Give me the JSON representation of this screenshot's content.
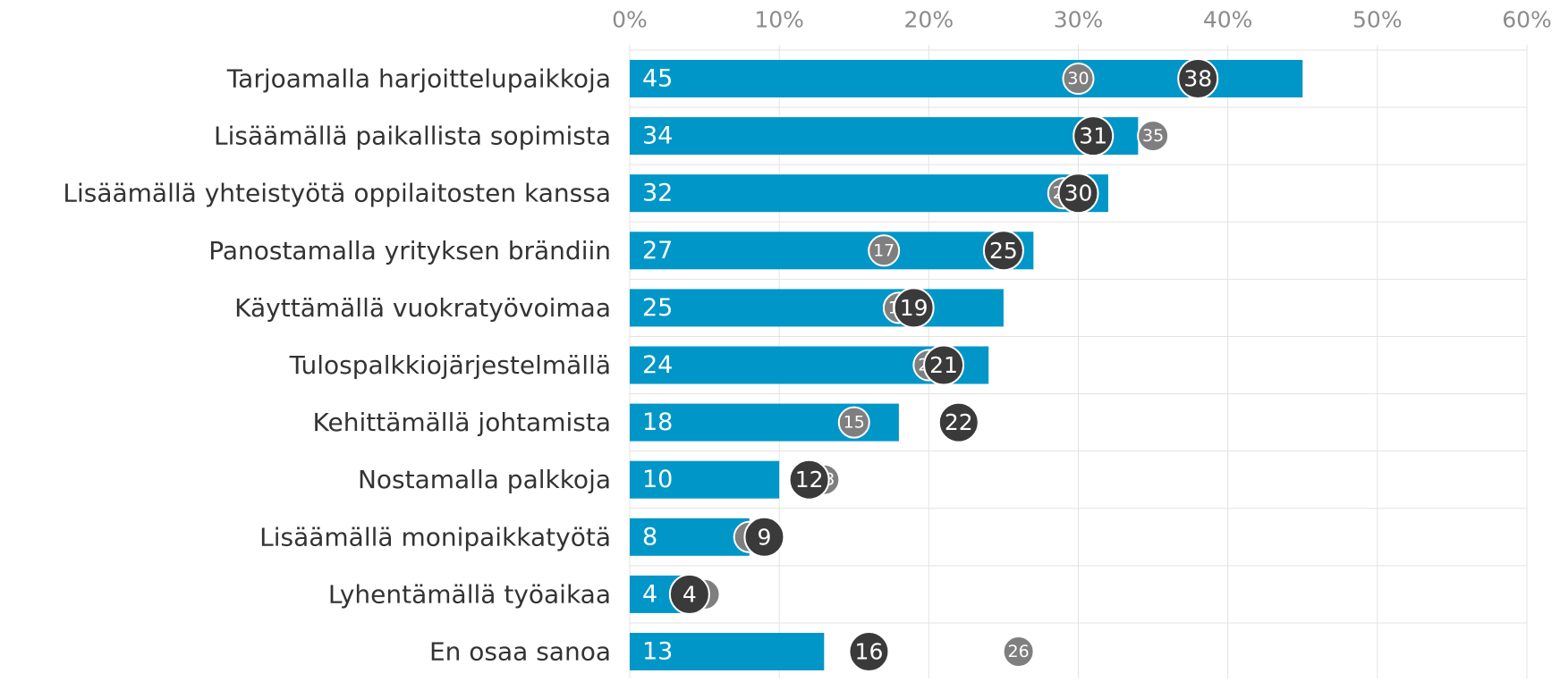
{
  "chart_data": {
    "type": "bar",
    "orientation": "horizontal",
    "categories": [
      "Tarjoamalla harjoittelupaikkoja",
      "Lisäämällä paikallista sopimista",
      "Lisäämällä yhteistyötä oppilaitosten kanssa",
      "Panostamalla yrityksen brändiin",
      "Käyttämällä vuokratyövoimaa",
      "Tulospalkkiojärjestelmällä",
      "Kehittämällä johtamista",
      "Nostamalla palkkoja",
      "Lisäämällä monipaikkatyötä",
      "Lyhentämällä työaikaa",
      "En osaa sanoa"
    ],
    "values": [
      45,
      34,
      32,
      27,
      25,
      24,
      18,
      10,
      8,
      4,
      13
    ],
    "color": "#0096c8",
    "series": [
      {
        "type": "scatter",
        "color": "#7f7f7f",
        "values": [
          30,
          35,
          29,
          17,
          18,
          20,
          15,
          13,
          8,
          5,
          26
        ]
      },
      {
        "type": "scatter",
        "color": "#3a3a3a",
        "values": [
          38,
          31,
          30,
          25,
          19,
          21,
          22,
          12,
          9,
          4,
          16
        ]
      }
    ],
    "xlim": [
      0,
      60
    ],
    "xticks": [
      {
        "value": 0,
        "label": "0%"
      },
      {
        "value": 10,
        "label": "10%"
      },
      {
        "value": 20,
        "label": "20%"
      },
      {
        "value": 30,
        "label": "30%"
      },
      {
        "value": 40,
        "label": "40%"
      },
      {
        "value": 50,
        "label": "50%"
      },
      {
        "value": 60,
        "label": "60%"
      }
    ],
    "grid": true
  }
}
